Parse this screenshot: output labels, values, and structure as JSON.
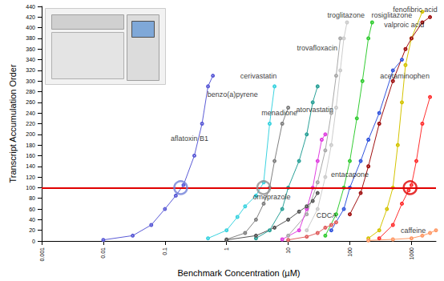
{
  "chart_data": {
    "type": "line",
    "x_label": "Benchmark Concentration (µM)",
    "y_label": "Transcript Accumulation Order",
    "log": "x",
    "grid": false,
    "marker": "circle",
    "xlim": [
      0.001,
      2500
    ],
    "xticks": [
      0.001,
      0.01,
      0.1,
      1,
      10,
      100,
      1000
    ],
    "ylim": [
      0,
      440
    ],
    "yticks": [
      0,
      20,
      40,
      60,
      80,
      100,
      120,
      140,
      160,
      180,
      200,
      220,
      240,
      260,
      280,
      300,
      320,
      340,
      360,
      380,
      400,
      420,
      440
    ],
    "threshold": 100,
    "threshold_color": "#e00000",
    "highlights": [
      {
        "x": 0.18,
        "y": 100,
        "color": "#7080d8"
      },
      {
        "x": 4,
        "y": 100,
        "color": "#909090"
      },
      {
        "x": 950,
        "y": 100,
        "color": "#e00000"
      }
    ],
    "series": [
      {
        "name": "aflatoxin B1",
        "color": "#5b5bd6",
        "x": [
          0.01,
          0.03,
          0.06,
          0.1,
          0.15,
          0.2,
          0.3,
          0.4,
          0.5,
          0.6
        ],
        "values": [
          2,
          10,
          30,
          60,
          85,
          105,
          160,
          220,
          290,
          310
        ]
      },
      {
        "name": "benzo(a)pyrene",
        "color": "#3cd3e0",
        "x": [
          0.5,
          1,
          1.5,
          2,
          3,
          4,
          5,
          6
        ],
        "values": [
          5,
          20,
          45,
          65,
          85,
          110,
          220,
          290
        ]
      },
      {
        "name": "cerivastatin",
        "color": "#808080",
        "x": [
          1,
          2,
          3,
          4,
          5,
          6,
          8,
          10
        ],
        "values": [
          3,
          15,
          40,
          70,
          100,
          150,
          220,
          250
        ]
      },
      {
        "name": "menadione",
        "color": "#2aa198",
        "x": [
          3,
          5,
          8,
          10,
          15,
          20,
          25,
          30
        ],
        "values": [
          5,
          20,
          60,
          100,
          150,
          200,
          260,
          290
        ]
      },
      {
        "name": "trovafloxacin",
        "color": "#a8a8a8",
        "x": [
          10,
          20,
          30,
          40,
          50,
          60,
          70
        ],
        "values": [
          10,
          50,
          110,
          170,
          240,
          310,
          380
        ]
      },
      {
        "name": "troglitazone",
        "color": "#cccccc",
        "x": [
          20,
          30,
          40,
          50,
          60,
          70,
          80,
          90
        ],
        "values": [
          20,
          60,
          120,
          180,
          250,
          320,
          380,
          410
        ]
      },
      {
        "name": "atorvastatin",
        "color": "#e040e0",
        "x": [
          8,
          15,
          20,
          25,
          30,
          35,
          40
        ],
        "values": [
          3,
          20,
          60,
          100,
          150,
          190,
          200
        ]
      },
      {
        "name": "omeprazole",
        "color": "#555555",
        "x": [
          1,
          3,
          6,
          10,
          15,
          20,
          25,
          30
        ],
        "values": [
          2,
          10,
          25,
          40,
          55,
          65,
          75,
          90
        ]
      },
      {
        "name": "CDCA",
        "color": "#e06060",
        "x": [
          10,
          20,
          30,
          40,
          50,
          60
        ],
        "values": [
          2,
          8,
          15,
          25,
          30,
          35
        ]
      },
      {
        "name": "rosiglitazone",
        "color": "#33cc33",
        "x": [
          40,
          60,
          80,
          100,
          130,
          160,
          200,
          230
        ],
        "values": [
          10,
          50,
          100,
          150,
          230,
          300,
          380,
          410
        ]
      },
      {
        "name": "entacapone",
        "color": "#3355dd",
        "x": [
          50,
          80,
          100,
          150,
          200,
          300,
          500,
          700
        ],
        "values": [
          20,
          60,
          100,
          150,
          190,
          240,
          320,
          340
        ]
      },
      {
        "name": "fenofibric acid",
        "color": "#d4c400",
        "x": [
          200,
          300,
          400,
          500,
          600,
          700,
          800,
          1000,
          1500
        ],
        "values": [
          5,
          20,
          60,
          100,
          180,
          260,
          330,
          380,
          430
        ]
      },
      {
        "name": "valproic acid",
        "color": "#a01010",
        "x": [
          100,
          150,
          200,
          300,
          500,
          800,
          1000,
          1500,
          2000
        ],
        "values": [
          50,
          90,
          140,
          220,
          300,
          360,
          380,
          410,
          420
        ]
      },
      {
        "name": "acetaminophen",
        "color": "#ff3030",
        "x": [
          300,
          500,
          700,
          900,
          1000,
          1200,
          1500,
          2000
        ],
        "values": [
          5,
          30,
          70,
          95,
          105,
          150,
          220,
          270
        ]
      },
      {
        "name": "caffeine",
        "color": "#ff9966",
        "x": [
          200,
          500,
          1000,
          1500,
          2000,
          2500
        ],
        "values": [
          1,
          3,
          5,
          10,
          15,
          20
        ]
      }
    ]
  }
}
